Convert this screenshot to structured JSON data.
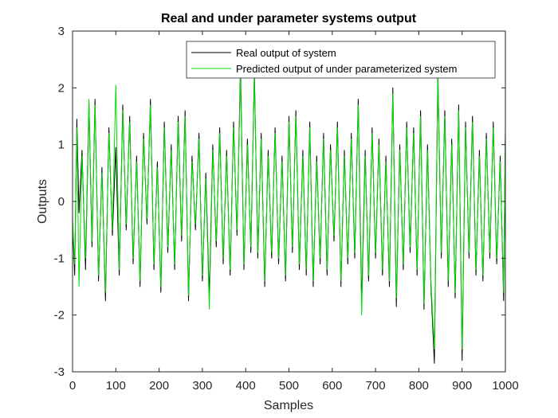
{
  "chart_data": {
    "type": "line",
    "title": "Real and under parameter systems output",
    "xlabel": "Samples",
    "ylabel": "Outputs",
    "xlim": [
      0,
      1000
    ],
    "ylim": [
      -3,
      3
    ],
    "x_ticks": [
      0,
      100,
      200,
      300,
      400,
      500,
      600,
      700,
      800,
      900,
      1000
    ],
    "y_ticks": [
      -3,
      -2,
      -1,
      0,
      1,
      2,
      3
    ],
    "grid": false,
    "legend_position": "top-right",
    "series": [
      {
        "name": "Real output of system",
        "color": "#000000",
        "x": [
          0,
          5,
          10,
          15,
          22,
          30,
          38,
          45,
          52,
          60,
          68,
          76,
          84,
          92,
          100,
          108,
          116,
          124,
          132,
          140,
          148,
          156,
          164,
          172,
          180,
          188,
          196,
          204,
          212,
          220,
          228,
          236,
          244,
          252,
          260,
          268,
          276,
          284,
          292,
          300,
          308,
          316,
          324,
          332,
          340,
          348,
          356,
          364,
          372,
          380,
          388,
          396,
          404,
          412,
          420,
          428,
          436,
          444,
          452,
          460,
          468,
          476,
          484,
          492,
          500,
          508,
          516,
          524,
          532,
          540,
          548,
          556,
          564,
          572,
          580,
          588,
          596,
          604,
          612,
          620,
          628,
          636,
          644,
          652,
          660,
          668,
          676,
          684,
          692,
          700,
          708,
          716,
          724,
          732,
          740,
          748,
          756,
          764,
          772,
          780,
          788,
          796,
          804,
          812,
          820,
          828,
          836,
          844,
          852,
          860,
          868,
          876,
          884,
          892,
          900,
          908,
          916,
          924,
          932,
          940,
          948,
          956,
          964,
          972,
          980,
          988,
          996,
          1000
        ],
        "values": [
          -0.4,
          -1.3,
          1.45,
          -0.2,
          0.9,
          -1.2,
          1.75,
          -0.8,
          1.8,
          -1.4,
          0.6,
          -1.75,
          1.3,
          -0.6,
          0.95,
          -1.3,
          1.7,
          -0.5,
          1.5,
          -1.1,
          0.8,
          -1.5,
          1.2,
          -0.4,
          1.8,
          -1.2,
          0.7,
          -1.6,
          1.4,
          -0.9,
          1.0,
          -1.2,
          1.5,
          -0.7,
          1.6,
          -1.75,
          0.8,
          -0.5,
          1.2,
          -1.4,
          0.5,
          -1.7,
          1.0,
          -0.8,
          1.3,
          -1.1,
          0.9,
          -1.3,
          1.4,
          -0.6,
          2.4,
          -1.2,
          1.1,
          -0.9,
          2.3,
          -1.0,
          1.2,
          -1.5,
          0.9,
          -1.0,
          1.3,
          -1.1,
          0.8,
          -1.4,
          1.5,
          -0.9,
          1.6,
          -1.2,
          0.9,
          -1.3,
          1.4,
          -1.5,
          0.8,
          -1.1,
          1.2,
          -1.3,
          1.0,
          -0.7,
          1.4,
          -1.5,
          0.9,
          -1.1,
          1.2,
          -1.0,
          1.8,
          -1.8,
          0.9,
          -1.4,
          1.3,
          -1.0,
          1.1,
          -1.3,
          0.8,
          -1.5,
          2.0,
          -1.85,
          1.0,
          -1.2,
          1.4,
          -0.9,
          1.3,
          -1.3,
          1.6,
          -1.9,
          1.0,
          -1.5,
          -2.85,
          2.3,
          -1.0,
          1.6,
          -1.5,
          1.1,
          -1.7,
          1.7,
          -2.8,
          1.4,
          -1.0,
          1.5,
          -1.3,
          0.9,
          -1.4,
          1.2,
          -1.0,
          1.4,
          -1.1,
          0.8,
          -1.75,
          1.3
        ]
      },
      {
        "name": "Predicted output of under parameterized system",
        "color": "#00dd00",
        "x": [
          0,
          5,
          10,
          15,
          22,
          30,
          38,
          45,
          52,
          60,
          68,
          76,
          84,
          92,
          100,
          108,
          116,
          124,
          132,
          140,
          148,
          156,
          164,
          172,
          180,
          188,
          196,
          204,
          212,
          220,
          228,
          236,
          244,
          252,
          260,
          268,
          276,
          284,
          292,
          300,
          308,
          316,
          324,
          332,
          340,
          348,
          356,
          364,
          372,
          380,
          388,
          396,
          404,
          412,
          420,
          428,
          436,
          444,
          452,
          460,
          468,
          476,
          484,
          492,
          500,
          508,
          516,
          524,
          532,
          540,
          548,
          556,
          564,
          572,
          580,
          588,
          596,
          604,
          612,
          620,
          628,
          636,
          644,
          652,
          660,
          668,
          676,
          684,
          692,
          700,
          708,
          716,
          724,
          732,
          740,
          748,
          756,
          764,
          772,
          780,
          788,
          796,
          804,
          812,
          820,
          828,
          836,
          844,
          852,
          860,
          868,
          876,
          884,
          892,
          900,
          908,
          916,
          924,
          932,
          940,
          948,
          956,
          964,
          972,
          980,
          988,
          996,
          1000
        ],
        "values": [
          -0.3,
          -1.1,
          1.3,
          -1.5,
          0.8,
          -1.0,
          1.8,
          -0.7,
          1.7,
          -1.3,
          0.5,
          -1.6,
          1.2,
          -0.5,
          2.05,
          -1.2,
          1.6,
          -0.4,
          1.4,
          -1.0,
          0.7,
          -1.4,
          1.1,
          -0.3,
          1.7,
          -1.1,
          0.6,
          -1.5,
          1.3,
          -0.8,
          0.9,
          -1.1,
          1.4,
          -0.6,
          1.5,
          -1.65,
          0.7,
          -0.4,
          1.1,
          -1.3,
          0.4,
          -1.9,
          0.9,
          -0.7,
          1.2,
          -1.0,
          0.8,
          -1.2,
          1.3,
          -0.5,
          2.2,
          -1.1,
          1.0,
          -0.8,
          2.2,
          -0.9,
          1.1,
          -1.4,
          0.8,
          -0.9,
          1.2,
          -1.0,
          0.7,
          -1.3,
          1.4,
          -0.8,
          1.5,
          -1.1,
          0.8,
          -1.2,
          1.3,
          -1.4,
          0.7,
          -1.0,
          1.1,
          -1.2,
          0.9,
          -0.6,
          1.3,
          -1.4,
          0.8,
          -1.0,
          1.1,
          -0.9,
          1.7,
          -2.0,
          0.8,
          -1.3,
          1.2,
          -0.9,
          1.0,
          -1.2,
          0.7,
          -1.4,
          1.9,
          -1.7,
          0.9,
          -1.1,
          1.3,
          -0.8,
          1.2,
          -1.2,
          1.5,
          -1.8,
          0.9,
          -1.4,
          -2.6,
          2.2,
          -0.9,
          1.5,
          -1.4,
          1.0,
          -1.6,
          1.6,
          -2.6,
          1.3,
          -0.9,
          1.4,
          -1.2,
          0.8,
          -1.3,
          1.1,
          -0.9,
          1.3,
          -1.0,
          0.7,
          -1.6,
          1.2
        ]
      }
    ]
  }
}
